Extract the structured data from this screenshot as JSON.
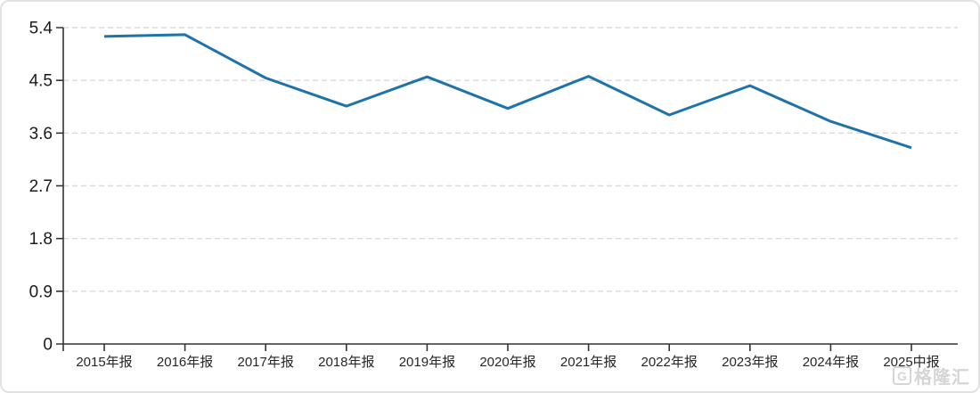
{
  "chart_data": {
    "type": "line",
    "categories": [
      "2015年报",
      "2016年报",
      "2017年报",
      "2018年报",
      "2019年报",
      "2020年报",
      "2021年报",
      "2022年报",
      "2023年报",
      "2024年报",
      "2025中报"
    ],
    "values": [
      5.25,
      5.28,
      4.54,
      4.06,
      4.56,
      4.02,
      4.57,
      3.91,
      4.41,
      3.8,
      3.35
    ],
    "title": "",
    "xlabel": "",
    "ylabel": "",
    "ylim": [
      0,
      5.4
    ],
    "yticks": [
      0,
      0.9,
      1.8,
      2.7,
      3.6,
      4.5,
      5.4
    ],
    "grid": "horizontal-dashed",
    "legend": "none"
  },
  "watermark": {
    "logo_letter": "G",
    "text": "格隆汇"
  },
  "colors": {
    "line": "#1e73a8",
    "grid": "#dadada",
    "axis": "#333333",
    "y_label": "#1a1a1a",
    "x_label": "#262626",
    "border": "#e2e2e2",
    "background": "#ffffff",
    "watermark": "#d5d5d5"
  }
}
